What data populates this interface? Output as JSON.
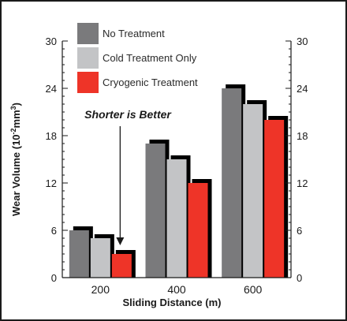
{
  "chart_data": {
    "type": "bar",
    "categories": [
      "200",
      "400",
      "600"
    ],
    "series": [
      {
        "name": "No Treatment",
        "color": "#7a7a7c",
        "values": [
          6,
          17,
          24
        ]
      },
      {
        "name": "Cold Treatment Only",
        "color": "#c3c4c6",
        "values": [
          5,
          15,
          22
        ]
      },
      {
        "name": "Cryogenic Treatment",
        "color": "#ee3428",
        "values": [
          3,
          12,
          20
        ]
      }
    ],
    "xlabel": "Sliding Distance (m)",
    "ylabel_main": "Wear Volume (10",
    "ylabel_exp1": "-2",
    "ylabel_mid": "mm",
    "ylabel_exp2": "3",
    "ylabel_end": ")",
    "ylim": [
      0,
      30
    ],
    "yticks": [
      0,
      6,
      12,
      18,
      24,
      30
    ],
    "right_axis": true,
    "grid": false,
    "legend_position": "top-left",
    "annotation": {
      "text": "Shorter is Better",
      "points_to": "Cryogenic Treatment at 200"
    }
  }
}
